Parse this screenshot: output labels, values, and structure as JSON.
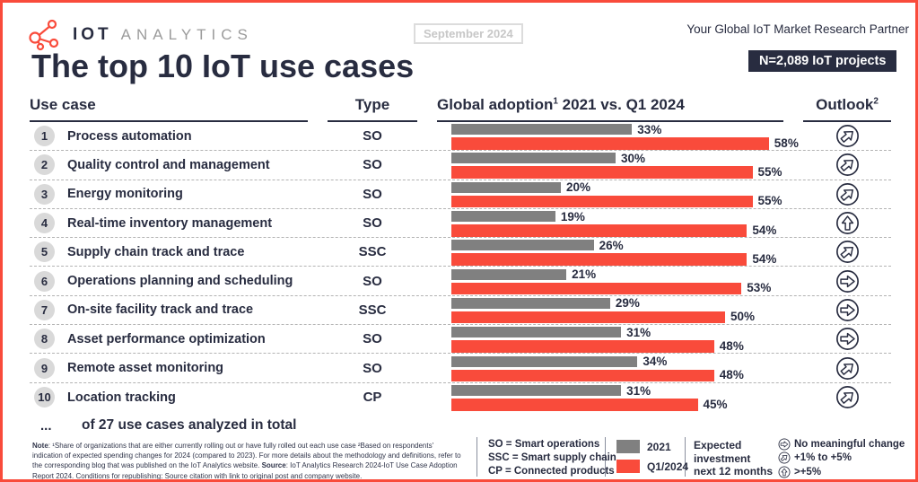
{
  "header": {
    "brand_bold": "IOT",
    "brand_light": "ANALYTICS",
    "date_badge": "September 2024",
    "tagline": "Your Global IoT Market Research Partner",
    "sample_badge": "N=2,089 IoT projects"
  },
  "title": "The top 10 IoT use cases",
  "columns": {
    "use_case": "Use case",
    "type": "Type",
    "adoption_label": "Global adoption",
    "adoption_sup": "1",
    "adoption_rest": " 2021 vs. Q1 2024",
    "outlook_label": "Outlook",
    "outlook_sup": "2"
  },
  "rows": [
    {
      "rank": "1",
      "name": "Process automation",
      "type": "SO",
      "v2021": 33,
      "v2024": 58,
      "outlook": "up-right"
    },
    {
      "rank": "2",
      "name": "Quality control and management",
      "type": "SO",
      "v2021": 30,
      "v2024": 55,
      "outlook": "up-right"
    },
    {
      "rank": "3",
      "name": "Energy monitoring",
      "type": "SO",
      "v2021": 20,
      "v2024": 55,
      "outlook": "up-right"
    },
    {
      "rank": "4",
      "name": "Real-time inventory management",
      "type": "SO",
      "v2021": 19,
      "v2024": 54,
      "outlook": "up"
    },
    {
      "rank": "5",
      "name": "Supply chain track and trace",
      "type": "SSC",
      "v2021": 26,
      "v2024": 54,
      "outlook": "up-right"
    },
    {
      "rank": "6",
      "name": "Operations planning and scheduling",
      "type": "SO",
      "v2021": 21,
      "v2024": 53,
      "outlook": "right"
    },
    {
      "rank": "7",
      "name": "On-site facility track and trace",
      "type": "SSC",
      "v2021": 29,
      "v2024": 50,
      "outlook": "right"
    },
    {
      "rank": "8",
      "name": "Asset performance optimization",
      "type": "SO",
      "v2021": 31,
      "v2024": 48,
      "outlook": "right"
    },
    {
      "rank": "9",
      "name": "Remote asset monitoring",
      "type": "SO",
      "v2021": 34,
      "v2024": 48,
      "outlook": "up-right"
    },
    {
      "rank": "10",
      "name": "Location tracking",
      "type": "CP",
      "v2021": 31,
      "v2024": 45,
      "outlook": "up-right"
    }
  ],
  "summary": {
    "ellipsis": "...",
    "text": "of 27 use cases analyzed in total"
  },
  "footnote": {
    "note_label": "Note",
    "note_body": ": ¹Share of organizations that are either currently rolling out or have fully rolled out each use case ²Based on respondents' indication of expected spending changes for 2024 (compared to 2023). For more details about the methodology and definitions, refer to the corresponding blog that was published on the IoT Analytics website. ",
    "source_label": "Source",
    "source_body": ": IoT Analytics Research 2024-IoT Use Case Adoption Report 2024. Conditions for republishing: Source citation with link to original post and company website."
  },
  "legend": {
    "types": [
      "SO = Smart operations",
      "SSC = Smart supply chain",
      "CP = Connected products"
    ],
    "series": [
      {
        "label": "2021",
        "color": "#808080"
      },
      {
        "label": "Q1/2024",
        "color": "#f94b3b"
      }
    ],
    "expected_lines": [
      "Expected",
      "investment",
      "next 12 months"
    ],
    "outlook_items": [
      {
        "icon": "right-arrow-circle-icon",
        "kind": "right",
        "label": "No meaningful change"
      },
      {
        "icon": "up-right-arrow-circle-icon",
        "kind": "up-right",
        "label": "+1% to +5%"
      },
      {
        "icon": "up-arrow-circle-icon",
        "kind": "up",
        "label": ">+5%"
      }
    ]
  },
  "colors": {
    "accent_red": "#f94b3b",
    "navy": "#282c40",
    "bar_gray": "#808080",
    "rank_circle_bg": "#d9d9d9",
    "dashed_line": "#b3b3b3"
  },
  "chart_data": {
    "type": "bar",
    "orientation": "horizontal",
    "title": "Global adoption 2021 vs. Q1 2024",
    "unit": "%",
    "categories": [
      "Process automation",
      "Quality control and management",
      "Energy monitoring",
      "Real-time inventory management",
      "Supply chain track and trace",
      "Operations planning and scheduling",
      "On-site facility track and trace",
      "Asset performance optimization",
      "Remote asset monitoring",
      "Location tracking"
    ],
    "series": [
      {
        "name": "2021",
        "color": "#808080",
        "values": [
          33,
          30,
          20,
          19,
          26,
          21,
          29,
          31,
          34,
          31
        ]
      },
      {
        "name": "Q1/2024",
        "color": "#f94b3b",
        "values": [
          58,
          55,
          55,
          54,
          54,
          53,
          50,
          48,
          48,
          45
        ]
      }
    ],
    "outlook_per_category": [
      "+1% to +5%",
      "+1% to +5%",
      "+1% to +5%",
      ">+5%",
      "+1% to +5%",
      "No meaningful change",
      "No meaningful change",
      "No meaningful change",
      "+1% to +5%",
      "+1% to +5%"
    ],
    "xlim": [
      0,
      60
    ],
    "data_labels": true,
    "legend_position": "bottom"
  }
}
